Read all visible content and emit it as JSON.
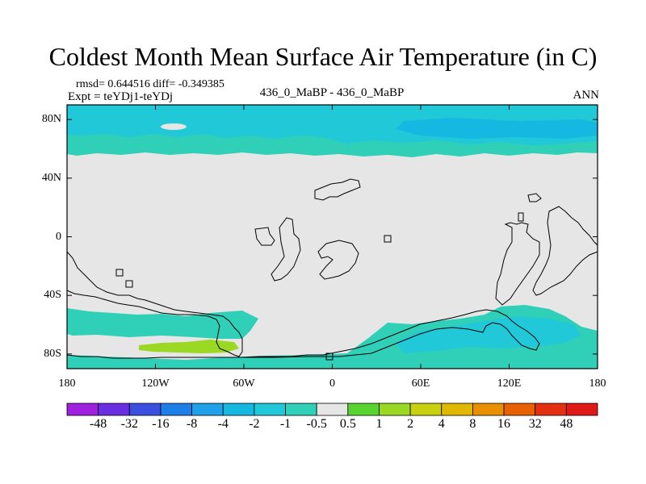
{
  "chart_data": {
    "type": "heatmap",
    "title": "Coldest Month Mean Surface Air Temperature (in C)",
    "stats": "rmsd= 0.644516 diff= -0.349385",
    "experiment": "Expt = teYDj1-teYDj",
    "subtitle": "436_0_MaBP - 436_0_MaBP",
    "period": "ANN",
    "x_range": [
      -180,
      180
    ],
    "y_range": [
      -90,
      90
    ],
    "x_ticks": [
      {
        "value": -180,
        "label": "180"
      },
      {
        "value": -120,
        "label": "120W"
      },
      {
        "value": -60,
        "label": "60W"
      },
      {
        "value": 0,
        "label": "0"
      },
      {
        "value": 60,
        "label": "60E"
      },
      {
        "value": 120,
        "label": "120E"
      },
      {
        "value": 180,
        "label": "180"
      }
    ],
    "y_ticks": [
      {
        "value": 80,
        "label": "80N"
      },
      {
        "value": 40,
        "label": "40N"
      },
      {
        "value": 0,
        "label": "0"
      },
      {
        "value": -40,
        "label": "40S"
      },
      {
        "value": -80,
        "label": "80S"
      }
    ],
    "colorbar": {
      "levels": [
        "-48",
        "-32",
        "-16",
        "-8",
        "-4",
        "-2",
        "-1",
        "-0.5",
        "0.5",
        "1",
        "2",
        "4",
        "8",
        "16",
        "32",
        "48"
      ],
      "colors": [
        "#a020e0",
        "#6a2ee0",
        "#3a4fe0",
        "#1e7ee8",
        "#1fa0e8",
        "#14b8e0",
        "#20c8d8",
        "#30d0b8",
        "#e6e6e6",
        "#58d430",
        "#9ad824",
        "#c8d010",
        "#e0b800",
        "#e89000",
        "#e86000",
        "#e43010",
        "#e01818"
      ]
    },
    "fields": [
      {
        "name": "arctic-cooling-band",
        "value_range": "-2 to -0.5",
        "region": "50N to 90N, all longitudes"
      },
      {
        "name": "southern-ocean-cooling",
        "value_range": "-2 to -0.5",
        "region": "45S to 90S, partial"
      },
      {
        "name": "antarctic-warming-patch",
        "value_range": "0.5 to 1",
        "region": "around 75S, 130W to 70W"
      }
    ]
  }
}
